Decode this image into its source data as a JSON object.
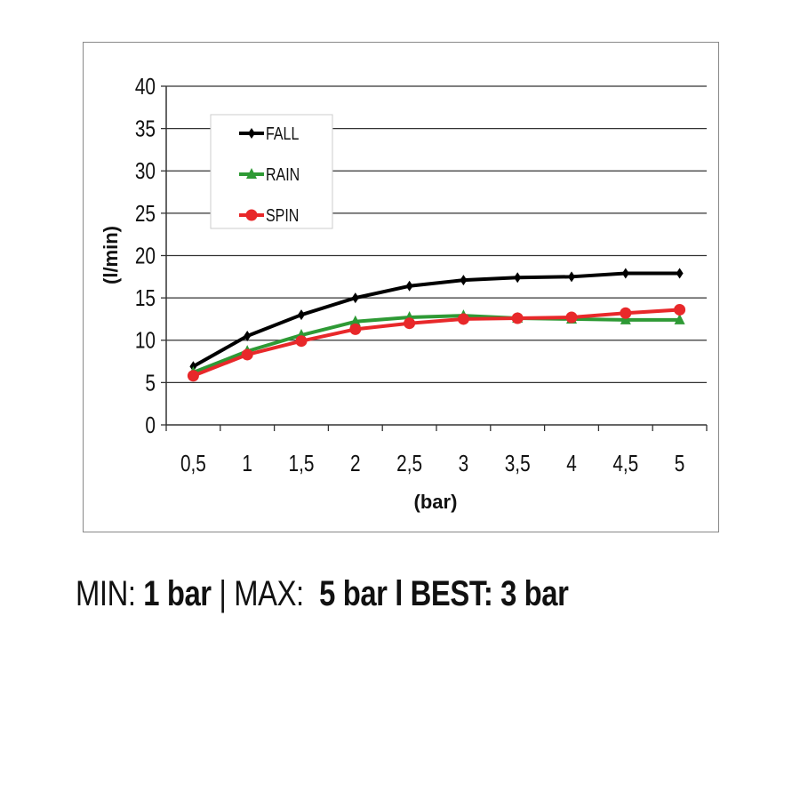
{
  "chart_data": {
    "type": "line",
    "xlabel": "(bar)",
    "ylabel": "(l/min)",
    "categories": [
      "0,5",
      "1",
      "1,5",
      "2",
      "2,5",
      "3",
      "3,5",
      "4",
      "4,5",
      "5"
    ],
    "ylim": [
      0,
      40
    ],
    "yticks": [
      "0",
      "5",
      "10",
      "15",
      "20",
      "25",
      "30",
      "35",
      "40"
    ],
    "grid": true,
    "legend_position": "top-left",
    "series": [
      {
        "name": "FALL",
        "color": "#000000",
        "marker": "diamond",
        "values": [
          6.9,
          10.5,
          13.0,
          15.0,
          16.4,
          17.1,
          17.4,
          17.5,
          17.9,
          17.9
        ]
      },
      {
        "name": "RAIN",
        "color": "#2e9a35",
        "marker": "triangle",
        "values": [
          6.2,
          8.7,
          10.6,
          12.2,
          12.7,
          12.9,
          12.6,
          12.5,
          12.4,
          12.4
        ]
      },
      {
        "name": "SPIN",
        "color": "#e8282a",
        "marker": "circle",
        "values": [
          5.8,
          8.3,
          9.9,
          11.3,
          12.0,
          12.5,
          12.6,
          12.7,
          13.2,
          13.6
        ]
      }
    ]
  },
  "footer": {
    "min_label": "MIN:",
    "min_value": "1 bar",
    "sep1": "|",
    "max_label": "MAX:",
    "max_value": "5 bar",
    "sep2": "l",
    "best_label": "BEST:",
    "best_value": "3 bar"
  }
}
